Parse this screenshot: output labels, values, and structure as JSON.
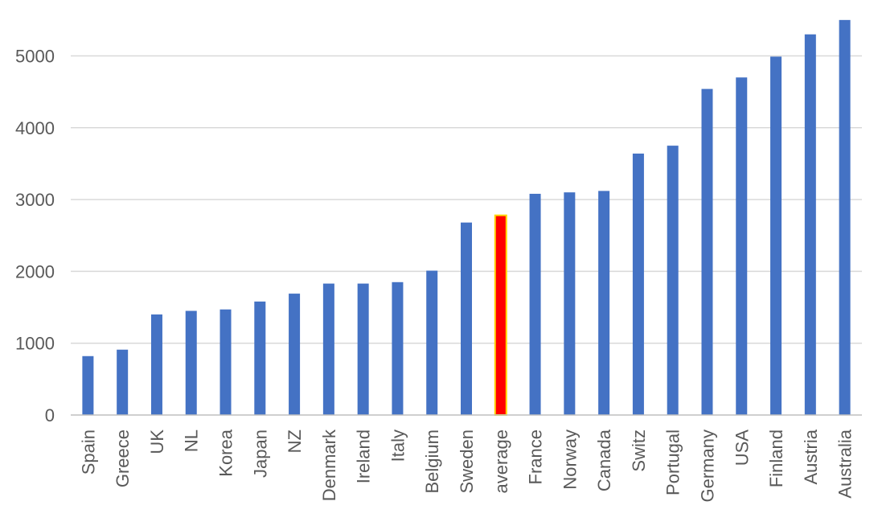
{
  "chart_data": {
    "type": "bar",
    "title": "",
    "xlabel": "",
    "ylabel": "",
    "ylim": [
      0,
      5500
    ],
    "yticks": [
      0,
      1000,
      2000,
      3000,
      4000,
      5000
    ],
    "grid": true,
    "legend": "none",
    "bar_color": "#4472c4",
    "highlight_color": "#ff0000",
    "highlight_border": "#ffd700",
    "highlight_category": "average",
    "categories": [
      "Spain",
      "Greece",
      "UK",
      "NL",
      "Korea",
      "Japan",
      "NZ",
      "Denmark",
      "Ireland",
      "Italy",
      "Belgium",
      "Sweden",
      "average",
      "France",
      "Norway",
      "Canada",
      "Switz",
      "Portugal",
      "Germany",
      "USA",
      "Finland",
      "Austria",
      "Australia"
    ],
    "values": [
      820,
      910,
      1400,
      1450,
      1470,
      1580,
      1690,
      1830,
      1830,
      1850,
      2010,
      2680,
      2780,
      3080,
      3100,
      3120,
      3640,
      3750,
      4540,
      4700,
      4990,
      5300,
      5500
    ]
  }
}
